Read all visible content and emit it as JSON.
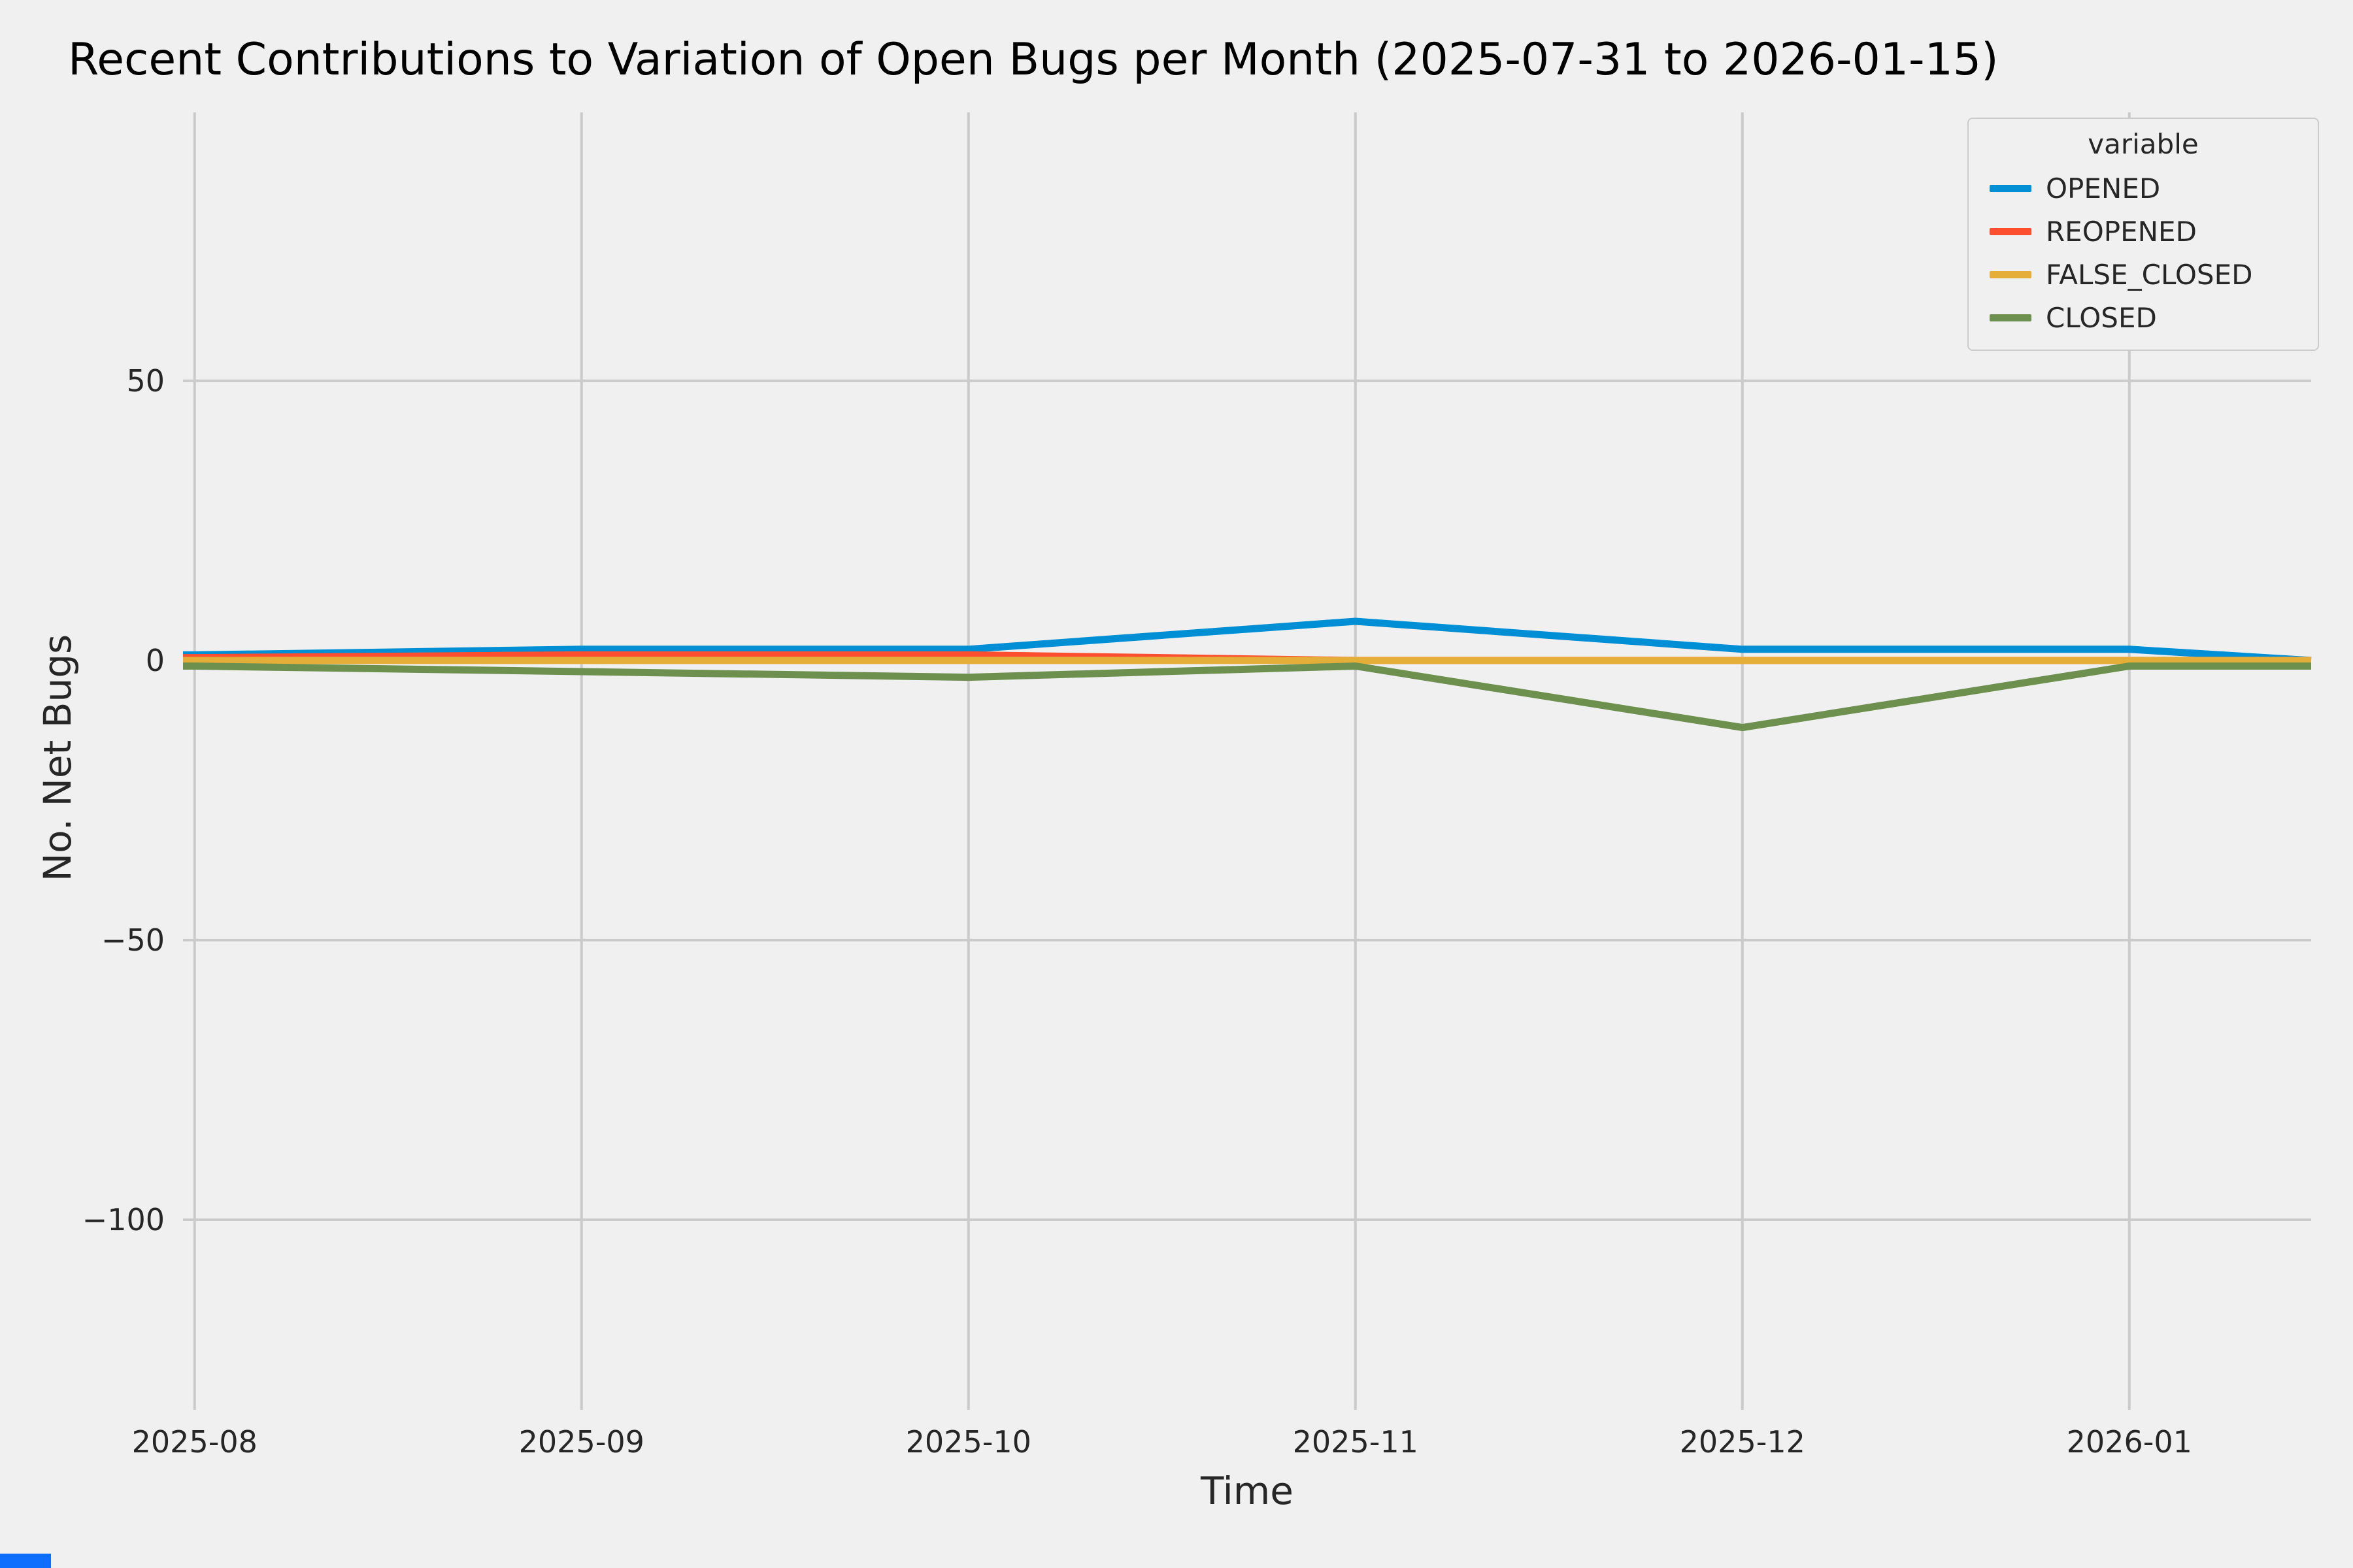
{
  "chart_data": {
    "type": "line",
    "title": "Recent Contributions to Variation of Open Bugs per Month (2025-07-31 to 2026-01-15)",
    "xlabel": "Time",
    "ylabel": "No. Net Bugs",
    "legend_title": "variable",
    "background_color": "#f0f0f0",
    "grid_color": "#cbcbcb",
    "text_color": "#262626",
    "xlim": [
      -0.03,
      5.47
    ],
    "ylim": [
      -134,
      98
    ],
    "x_ticks": [
      {
        "pos": 0,
        "label": "2025-08"
      },
      {
        "pos": 1,
        "label": "2025-09"
      },
      {
        "pos": 2,
        "label": "2025-10"
      },
      {
        "pos": 3,
        "label": "2025-11"
      },
      {
        "pos": 4,
        "label": "2025-12"
      },
      {
        "pos": 5,
        "label": "2026-01"
      }
    ],
    "y_ticks": [
      {
        "pos": 50,
        "label": "50"
      },
      {
        "pos": 0,
        "label": "0"
      },
      {
        "pos": -50,
        "label": "−50"
      },
      {
        "pos": -100,
        "label": "−100"
      }
    ],
    "x": [
      -0.03,
      0,
      1,
      2,
      3,
      4,
      5,
      5.47
    ],
    "series": [
      {
        "name": "OPENED",
        "color": "#008fd5",
        "values": [
          1,
          1,
          2,
          2,
          7,
          2,
          2,
          0
        ]
      },
      {
        "name": "REOPENED",
        "color": "#fc4f30",
        "values": [
          0.5,
          0.5,
          1,
          1,
          0,
          0,
          0,
          0
        ]
      },
      {
        "name": "FALSE_CLOSED",
        "color": "#e5ae38",
        "values": [
          0,
          0,
          0,
          0,
          0,
          0,
          0,
          0
        ]
      },
      {
        "name": "CLOSED",
        "color": "#6d904f",
        "values": [
          -1,
          -1,
          -2,
          -3,
          -1,
          -12,
          -1,
          -1
        ]
      }
    ]
  },
  "decoration": {
    "bottom_left_strip_color": "#0d6efd"
  }
}
